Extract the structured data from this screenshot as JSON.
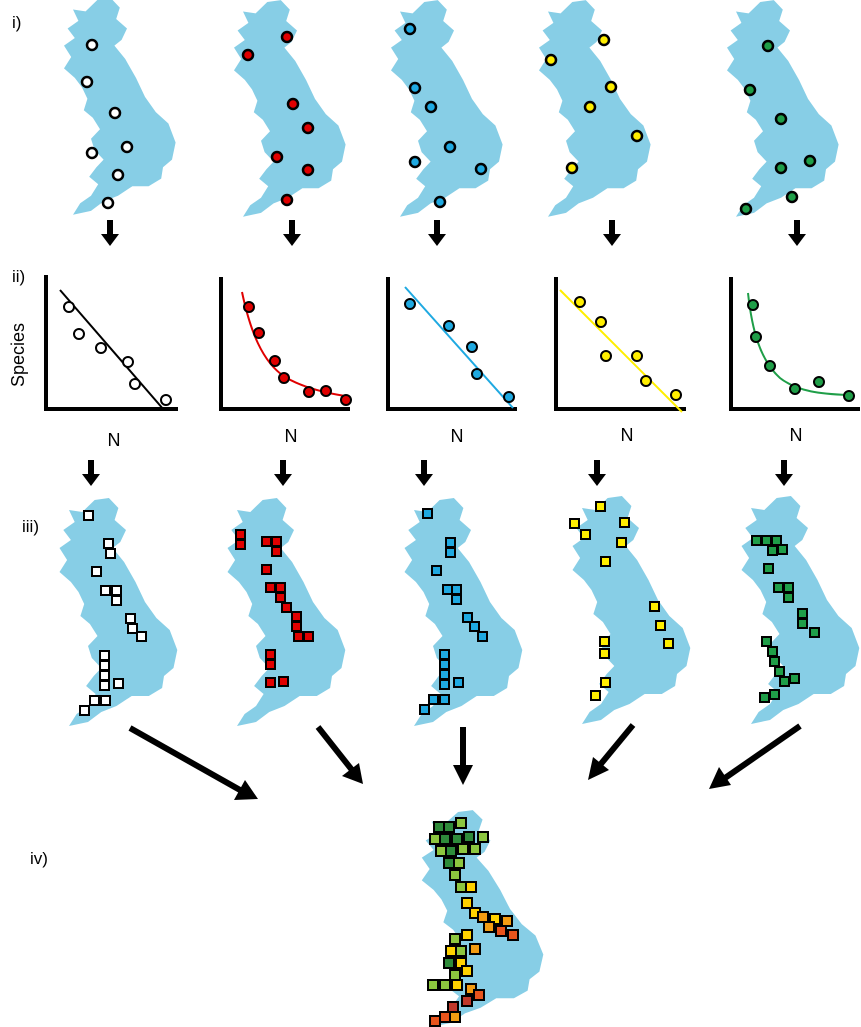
{
  "stage_labels": [
    "i)",
    "ii)",
    "iii)",
    "iv)"
  ],
  "axes": {
    "ylabel": "Species",
    "xlabel": "N"
  },
  "colors": {
    "map_fill": "#87CEE6",
    "arrow": "#000000",
    "outline": "#000000"
  },
  "species_groups": [
    {
      "id": "white",
      "color": "#ffffff",
      "fit": "linear"
    },
    {
      "id": "red",
      "color": "#e00000",
      "fit": "exponential-decay"
    },
    {
      "id": "blue",
      "color": "#1fa9e1",
      "fit": "linear"
    },
    {
      "id": "yellow",
      "color": "#ffee00",
      "fit": "linear"
    },
    {
      "id": "green",
      "color": "#1f9e48",
      "fit": "exponential-decay"
    }
  ],
  "combined_map": {
    "palette": [
      "#2e8b3a",
      "#8dc63f",
      "#ffd200",
      "#f39c12",
      "#e8541c",
      "#c0392b"
    ]
  }
}
